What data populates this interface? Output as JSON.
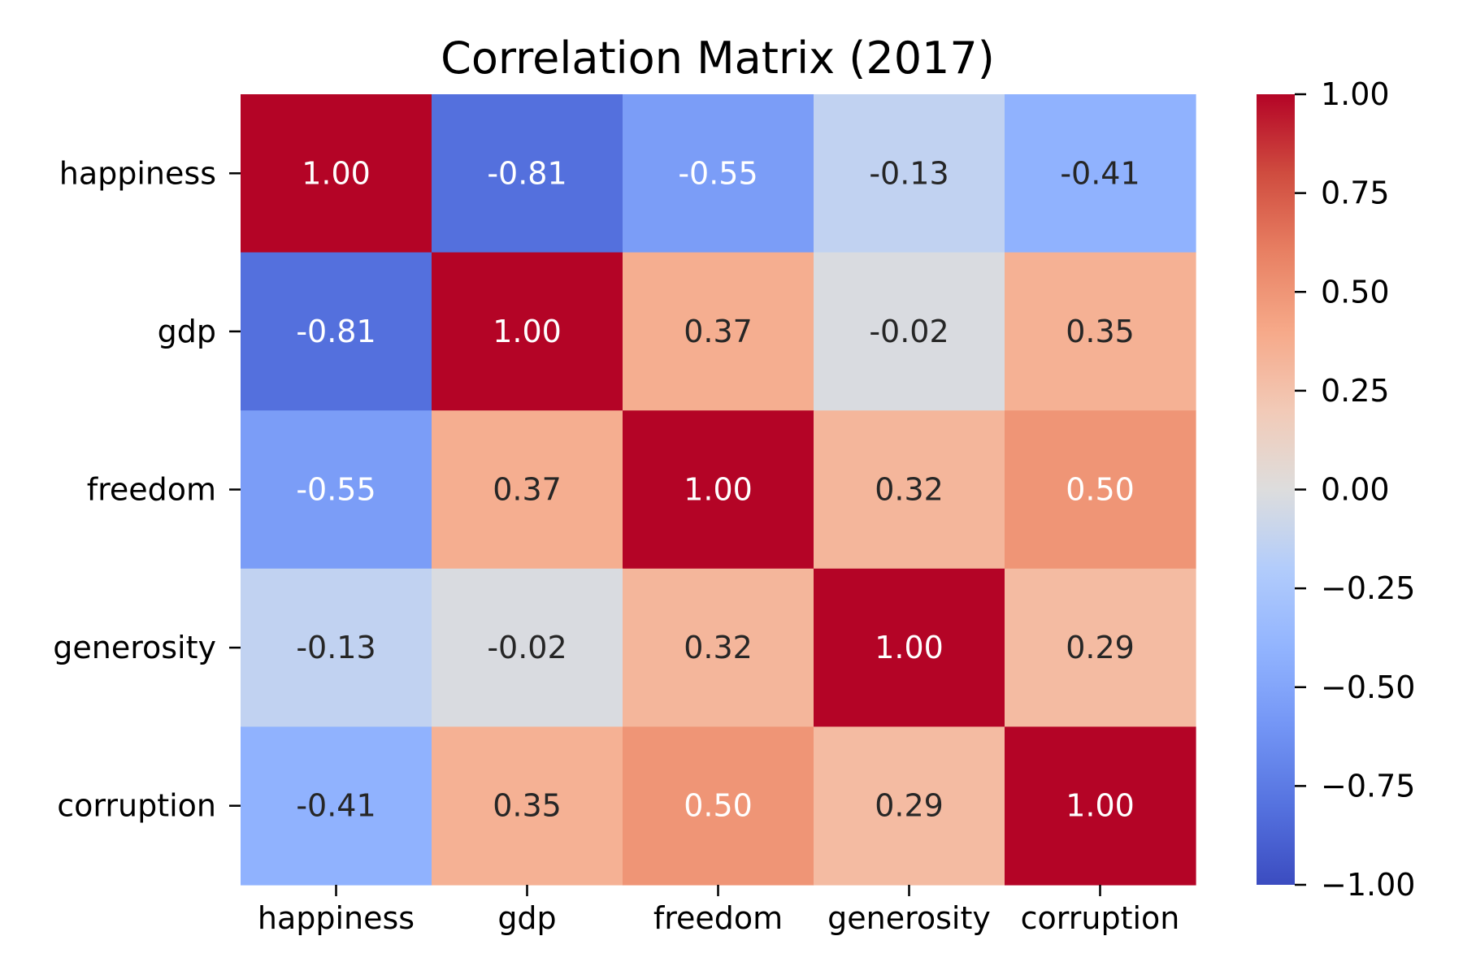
{
  "chart_data": {
    "type": "heatmap",
    "title": "Correlation Matrix (2017)",
    "xlabel": "",
    "ylabel": "",
    "x_categories": [
      "happiness",
      "gdp",
      "freedom",
      "generosity",
      "corruption"
    ],
    "y_categories": [
      "happiness",
      "gdp",
      "freedom",
      "generosity",
      "corruption"
    ],
    "values": [
      [
        1.0,
        -0.81,
        -0.55,
        -0.13,
        -0.41
      ],
      [
        -0.81,
        1.0,
        0.37,
        -0.02,
        0.35
      ],
      [
        -0.55,
        0.37,
        1.0,
        0.32,
        0.5
      ],
      [
        -0.13,
        -0.02,
        0.32,
        1.0,
        0.29
      ],
      [
        -0.41,
        0.35,
        0.5,
        0.29,
        1.0
      ]
    ],
    "cell_labels": [
      [
        "1.00",
        "-0.81",
        "-0.55",
        "-0.13",
        "-0.41"
      ],
      [
        "-0.81",
        "1.00",
        "0.37",
        "-0.02",
        "0.35"
      ],
      [
        "-0.55",
        "0.37",
        "1.00",
        "0.32",
        "0.50"
      ],
      [
        "-0.13",
        "-0.02",
        "0.32",
        "1.00",
        "0.29"
      ],
      [
        "-0.41",
        "0.35",
        "0.50",
        "0.29",
        "1.00"
      ]
    ],
    "colormap": "coolwarm",
    "vmin": -1.0,
    "vmax": 1.0,
    "colorbar": {
      "ticks": [
        1.0,
        0.75,
        0.5,
        0.25,
        0.0,
        -0.25,
        -0.5,
        -0.75,
        -1.0
      ],
      "tick_labels": [
        "1.00",
        "0.75",
        "0.50",
        "0.25",
        "0.00",
        "−0.25",
        "−0.50",
        "−0.75",
        "−1.00"
      ],
      "position": "right"
    },
    "colors": {
      "text_light": "#ffffff",
      "text_dark": "#262626"
    },
    "grid": false
  }
}
